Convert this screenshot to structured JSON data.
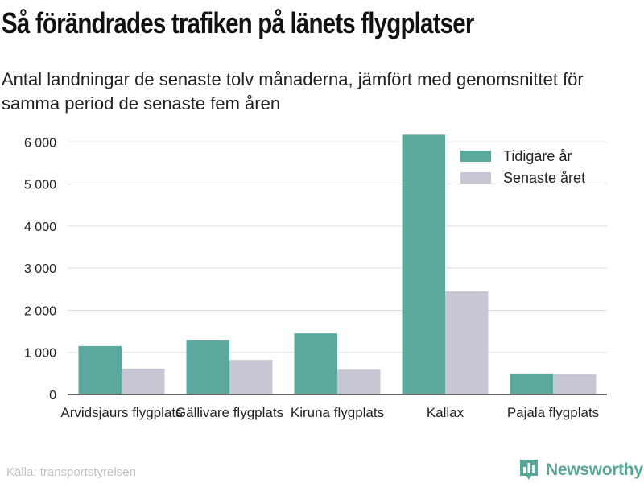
{
  "header": {
    "title": "Så förändrades trafiken på länets flygplatser",
    "subtitle": "Antal landningar de senaste tolv månaderna, jämfört med genomsnittet för samma period de senaste fem åren"
  },
  "footer": {
    "source": "Källa: transportstyrelsen",
    "brand": "Newsworthy"
  },
  "icons": {
    "brand_logo": "bar-chart-badge-icon"
  },
  "colors": {
    "series_previous": "#5ba89d",
    "series_latest": "#c7c7d4",
    "brand": "#5aa79a",
    "grid": "#dddddd",
    "axis": "#333333"
  },
  "chart_data": {
    "type": "bar",
    "categories": [
      "Arvidsjaurs flygplats",
      "Gällivare flygplats",
      "Kiruna flygplats",
      "Kallax",
      "Pajala flygplats"
    ],
    "series": [
      {
        "name": "Tidigare år",
        "values": [
          1150,
          1300,
          1450,
          6170,
          500
        ]
      },
      {
        "name": "Senaste året",
        "values": [
          610,
          820,
          590,
          2450,
          490
        ]
      }
    ],
    "ylim": [
      0,
      6000
    ],
    "yticks": [
      0,
      1000,
      2000,
      3000,
      4000,
      5000,
      6000
    ],
    "ytick_labels": [
      "0",
      "1 000",
      "2 000",
      "3 000",
      "4 000",
      "5 000",
      "6 000"
    ],
    "xlabel": "",
    "ylabel": "",
    "grid": true,
    "legend_position": "top-right"
  }
}
